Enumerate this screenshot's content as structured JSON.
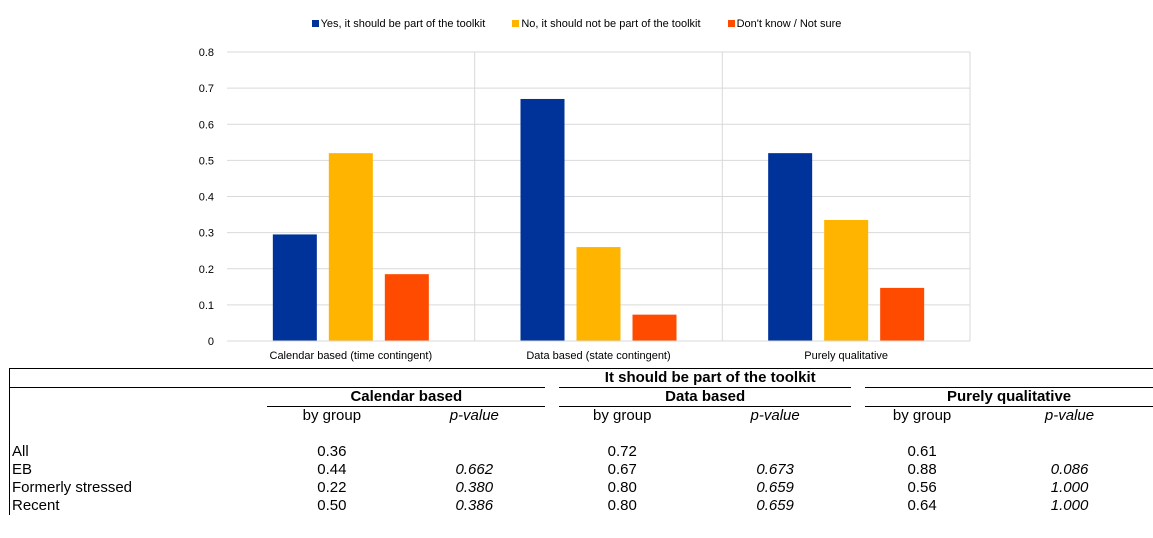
{
  "chart_data": {
    "type": "bar",
    "categories": [
      "Calendar based (time contingent)",
      "Data based (state contingent)",
      "Purely qualitative"
    ],
    "series": [
      {
        "name": "Yes, it should be part of the toolkit",
        "color": "#003399",
        "values": [
          0.295,
          0.67,
          0.52
        ]
      },
      {
        "name": "No, it should not be part of the toolkit",
        "color": "#FFB400",
        "values": [
          0.52,
          0.26,
          0.335
        ]
      },
      {
        "name": "Don't know / Not sure",
        "color": "#FF4B00",
        "values": [
          0.185,
          0.073,
          0.147
        ]
      }
    ],
    "ylim": [
      0,
      0.8
    ],
    "yticks": [
      "0",
      "0.1",
      "0.2",
      "0.3",
      "0.4",
      "0.5",
      "0.6",
      "0.7",
      "0.8"
    ],
    "grid": true,
    "legend_position": "top"
  },
  "table": {
    "title": "It should be part of the toolkit",
    "groups": [
      "Calendar based",
      "Data based",
      "Purely qualitative"
    ],
    "subheaders": [
      "by group",
      "p-value"
    ],
    "rows": [
      {
        "label": "All",
        "values": [
          "0.36",
          "",
          "0.72",
          "",
          "0.61",
          ""
        ]
      },
      {
        "label": "EB",
        "values": [
          "0.44",
          "0.662",
          "0.67",
          "0.673",
          "0.88",
          "0.086"
        ]
      },
      {
        "label": "Formerly stressed",
        "values": [
          "0.22",
          "0.380",
          "0.80",
          "0.659",
          "0.56",
          "1.000"
        ]
      },
      {
        "label": "Recent",
        "values": [
          "0.50",
          "0.386",
          "0.80",
          "0.659",
          "0.64",
          "1.000"
        ]
      }
    ]
  }
}
